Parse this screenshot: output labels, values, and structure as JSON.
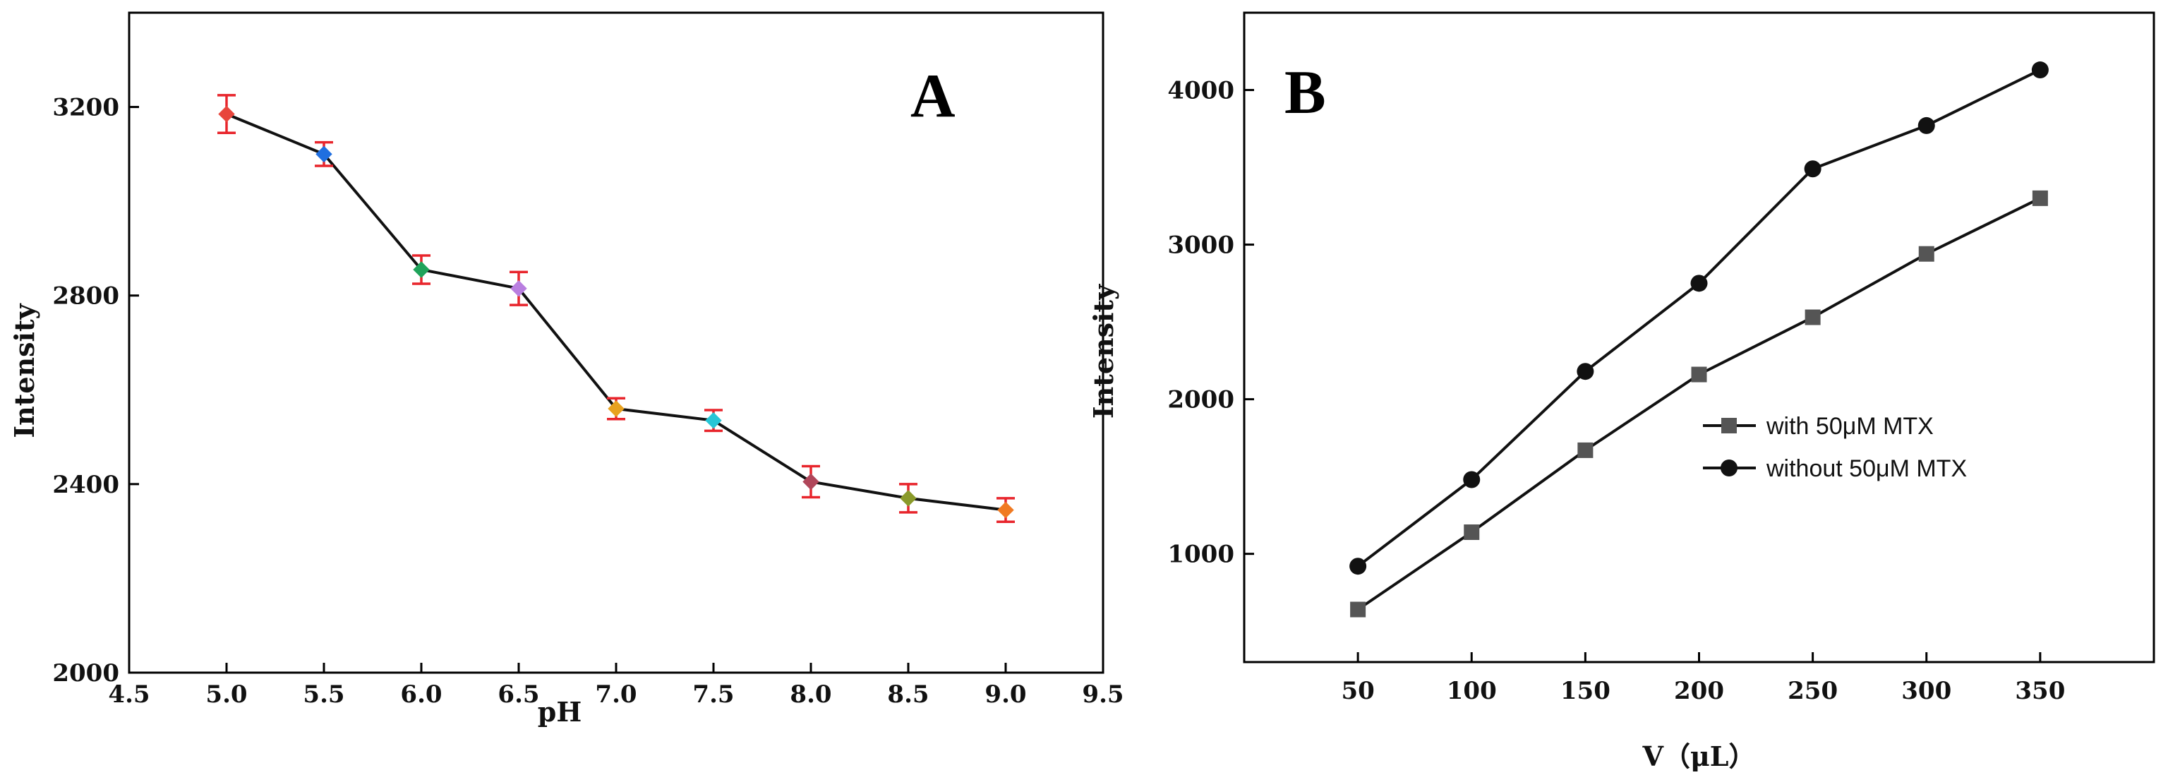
{
  "chart_data": [
    {
      "type": "line",
      "panel": "A",
      "title": "",
      "xlabel": "pH",
      "ylabel": "Intensity",
      "xlim": [
        4.5,
        9.5
      ],
      "ylim": [
        2000,
        3400
      ],
      "xticks": [
        "4.5",
        "5.0",
        "5.5",
        "6.0",
        "6.5",
        "7.0",
        "7.5",
        "8.0",
        "8.5",
        "9.0",
        "9.5"
      ],
      "yticks": [
        "2000",
        "2400",
        "2800",
        "3200"
      ],
      "grid": false,
      "series": [
        {
          "name": "Intensity",
          "x": [
            5.0,
            5.5,
            6.0,
            6.5,
            7.0,
            7.5,
            8.0,
            8.5,
            9.0
          ],
          "y": [
            3185,
            3100,
            2855,
            2815,
            2560,
            2535,
            2405,
            2370,
            2345
          ],
          "error": [
            40,
            25,
            30,
            35,
            22,
            22,
            33,
            30,
            25
          ],
          "marker_colors": [
            "#e8453c",
            "#1f6fe0",
            "#1fa35a",
            "#b97ee0",
            "#e8a21f",
            "#27c6d6",
            "#b0465a",
            "#8a9a2a",
            "#f07a22"
          ]
        }
      ],
      "error_bar_color": "#e8252c"
    },
    {
      "type": "line",
      "panel": "B",
      "title": "",
      "xlabel": "V（μL）",
      "ylabel": "Intensity",
      "xlim": [
        0,
        400
      ],
      "ylim": [
        300,
        4500
      ],
      "xticks": [
        "50",
        "100",
        "150",
        "200",
        "250",
        "300",
        "350"
      ],
      "yticks": [
        "1000",
        "2000",
        "3000",
        "4000"
      ],
      "grid": false,
      "legend_position": "center-right",
      "series": [
        {
          "name": "with 50μM MTX",
          "marker": "square",
          "color": "#555555",
          "x": [
            50,
            100,
            150,
            200,
            250,
            300,
            350
          ],
          "y": [
            640,
            1140,
            1670,
            2160,
            2530,
            2940,
            3300
          ]
        },
        {
          "name": "without 50μM MTX",
          "marker": "circle",
          "color": "#111111",
          "x": [
            50,
            100,
            150,
            200,
            250,
            300,
            350
          ],
          "y": [
            920,
            1480,
            2180,
            2750,
            3490,
            3770,
            4130
          ]
        }
      ]
    }
  ]
}
